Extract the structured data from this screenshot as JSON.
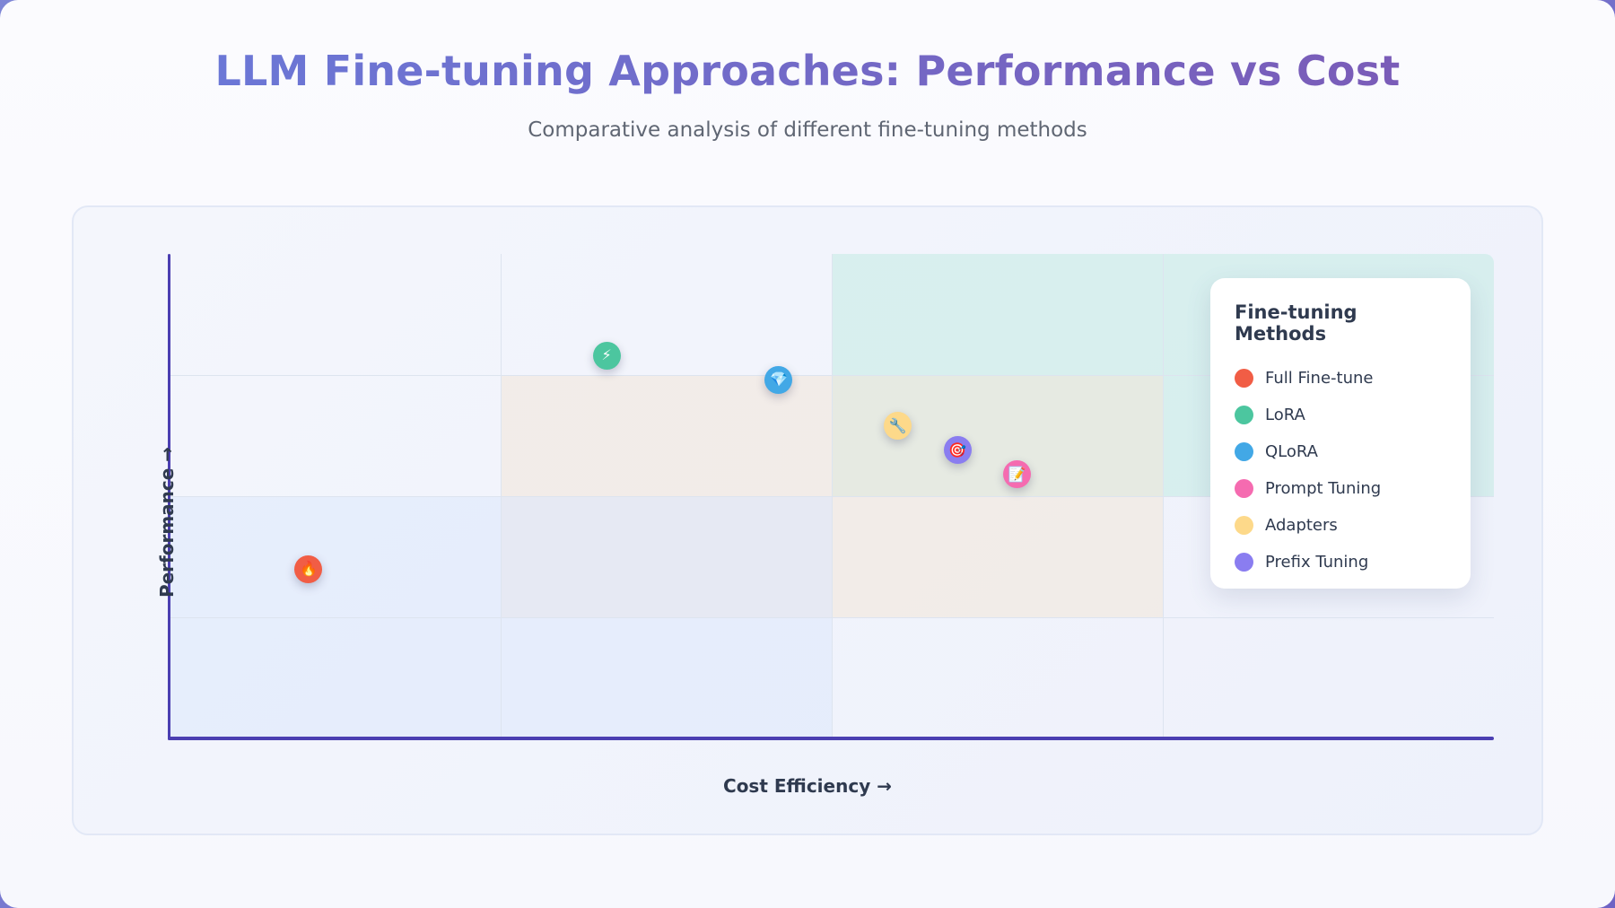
{
  "page": {
    "title": "LLM Fine-tuning Approaches: Performance vs Cost",
    "subtitle": "Comparative analysis of different fine-tuning methods"
  },
  "chart_data": {
    "type": "scatter",
    "title": "LLM Fine-tuning Approaches: Performance vs Cost",
    "subtitle": "Comparative analysis of different fine-tuning methods",
    "xlabel": "Cost Efficiency →",
    "ylabel": "Performance →",
    "xlim": [
      0,
      100
    ],
    "ylim": [
      0,
      100
    ],
    "grid": true,
    "legend": {
      "title": "Fine-tuning Methods",
      "placement": "top-right"
    },
    "zones": [
      {
        "x": [
          50,
          100
        ],
        "y": [
          50,
          100
        ],
        "color": "#c3ebe4"
      },
      {
        "x": [
          25,
          75
        ],
        "y": [
          25,
          75
        ],
        "color": "#f3e6d8"
      },
      {
        "x": [
          0,
          50
        ],
        "y": [
          0,
          50
        ],
        "color": "#dce7fb"
      }
    ],
    "series": [
      {
        "name": "Full Fine-tune",
        "x": 10.5,
        "y": 35,
        "color": "#f15d45",
        "icon": "🔥",
        "icon_name": "fire-icon"
      },
      {
        "name": "LoRA",
        "x": 33,
        "y": 79,
        "color": "#4cc69f",
        "icon": "⚡",
        "icon_name": "lightning-icon"
      },
      {
        "name": "QLoRA",
        "x": 46,
        "y": 74,
        "color": "#42a8e6",
        "icon": "💎",
        "icon_name": "gem-icon"
      },
      {
        "name": "Adapters",
        "x": 55,
        "y": 64.5,
        "color": "#fdd98a",
        "icon": "🔧",
        "icon_name": "wrench-icon"
      },
      {
        "name": "Prefix Tuning",
        "x": 59.5,
        "y": 59.5,
        "color": "#8a7df0",
        "icon": "🎯",
        "icon_name": "target-icon"
      },
      {
        "name": "Prompt Tuning",
        "x": 64,
        "y": 54.5,
        "color": "#f56bb0",
        "icon": "📝",
        "icon_name": "memo-icon"
      }
    ]
  },
  "legend_items": [
    {
      "label": "Full Fine-tune",
      "color": "#f15d45"
    },
    {
      "label": "LoRA",
      "color": "#4cc69f"
    },
    {
      "label": "QLoRA",
      "color": "#42a8e6"
    },
    {
      "label": "Prompt Tuning",
      "color": "#f56bb0"
    },
    {
      "label": "Adapters",
      "color": "#fdd98a"
    },
    {
      "label": "Prefix Tuning",
      "color": "#8a7df0"
    }
  ]
}
